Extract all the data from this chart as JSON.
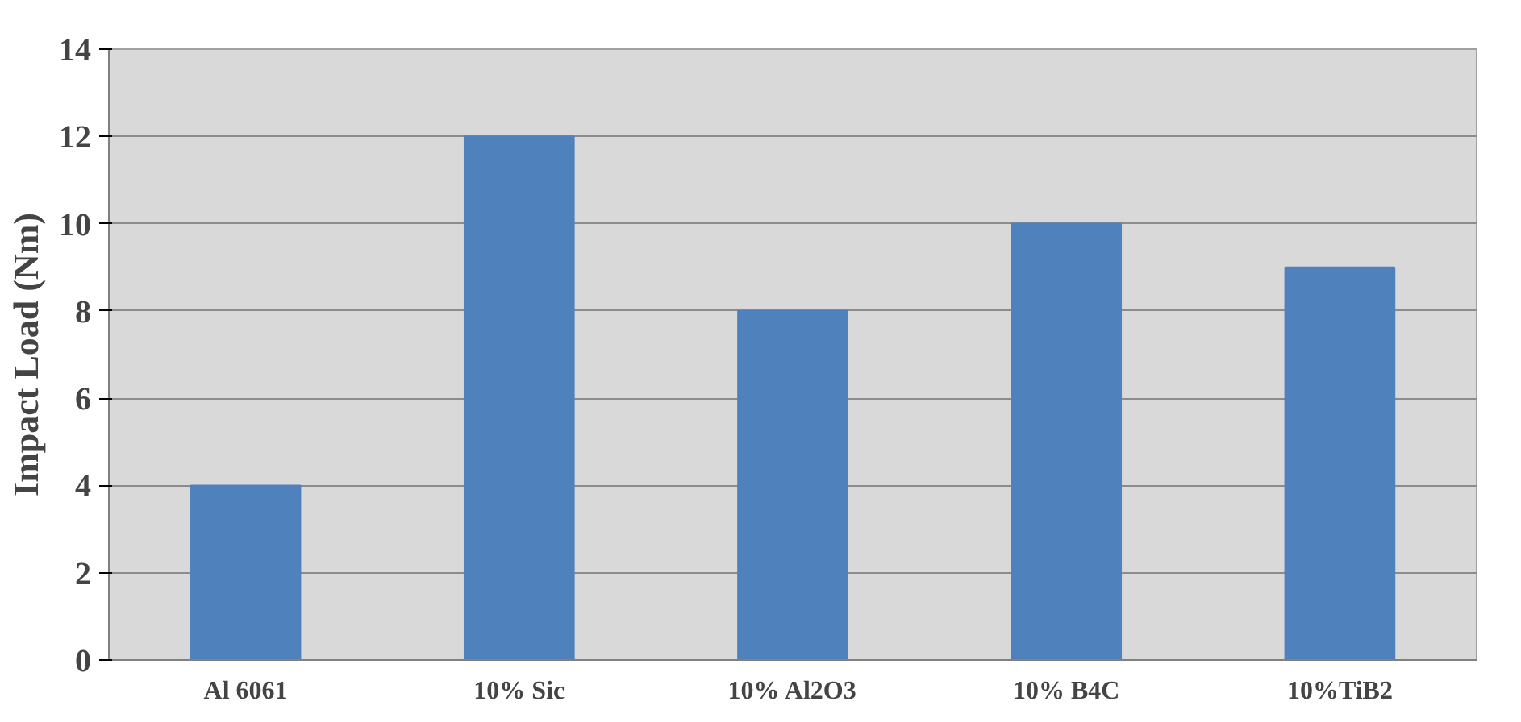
{
  "chart_data": {
    "type": "bar",
    "ylabel": "Impact Load (Nm)",
    "categories": [
      "Al 6061",
      "10% Sic",
      "10% Al2O3",
      "10% B4C",
      "10%TiB2"
    ],
    "values": [
      4,
      12,
      8,
      10,
      9
    ],
    "color": "#4f81bd",
    "ylim": [
      0,
      14
    ],
    "yticks": [
      0,
      2,
      4,
      6,
      8,
      10,
      12,
      14
    ],
    "grid": "y"
  }
}
